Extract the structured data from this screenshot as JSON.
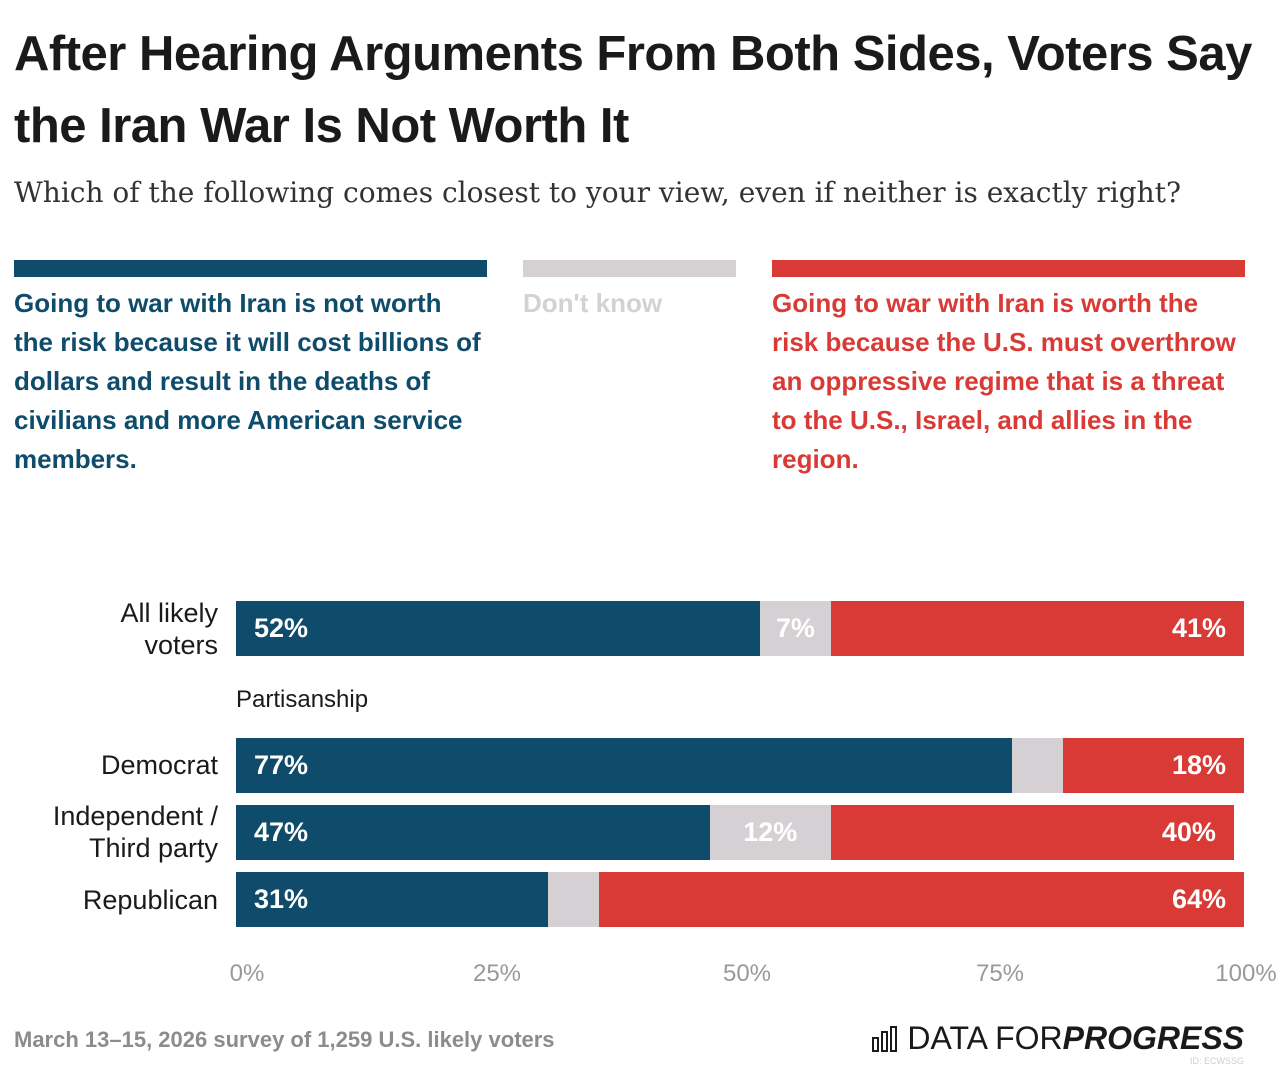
{
  "title": "After Hearing Arguments From Both Sides, Voters Say the Iran War Is Not Worth It",
  "subtitle": "Which of the following comes closest to your view, even if neither is exactly right?",
  "colors": {
    "not_worth": "#0f4c6b",
    "dont_know": "#d4d0d3",
    "worth": "#d93a35"
  },
  "legend": [
    {
      "key": "not_worth",
      "text": "Going to war with Iran is not worth the risk because it will cost billions of dollars and result in the deaths of civilians and more American service members."
    },
    {
      "key": "dont_know",
      "text": "Don't know"
    },
    {
      "key": "worth",
      "text": "Going to war with Iran is worth the risk because the U.S. must overthrow an oppressive regime that is a threat to the U.S., Israel, and allies in the region."
    }
  ],
  "group_label": "Partisanship",
  "chart_data": {
    "type": "bar",
    "orientation": "horizontal",
    "stacked": true,
    "categories": [
      "All likely voters",
      "Democrat",
      "Independent / Third party",
      "Republican"
    ],
    "series": [
      {
        "name": "Going to war with Iran is not worth the risk because it will cost billions of dollars and result in the deaths of civilians and more American service members.",
        "values": [
          52,
          77,
          47,
          31
        ],
        "labels": [
          "52%",
          "77%",
          "47%",
          "31%"
        ]
      },
      {
        "name": "Don't know",
        "values": [
          7,
          5,
          12,
          5
        ],
        "labels": [
          "7%",
          "",
          "12%",
          ""
        ]
      },
      {
        "name": "Going to war with Iran is worth the risk because the U.S. must overthrow an oppressive regime that is a threat to the U.S., Israel, and allies in the region.",
        "values": [
          41,
          18,
          40,
          64
        ],
        "labels": [
          "41%",
          "18%",
          "40%",
          "64%"
        ]
      }
    ],
    "xlim": [
      0,
      100
    ],
    "xticks": [
      "0%",
      "25%",
      "50%",
      "75%",
      "100%"
    ]
  },
  "footer": {
    "note": "March 13–15, 2026 survey of 1,259 U.S. likely voters",
    "logo_light": "DATA FOR ",
    "logo_bold": "PROGRESS",
    "logo_icon": "bar-chart-logo-icon",
    "id": "ID: ECWSSG"
  }
}
